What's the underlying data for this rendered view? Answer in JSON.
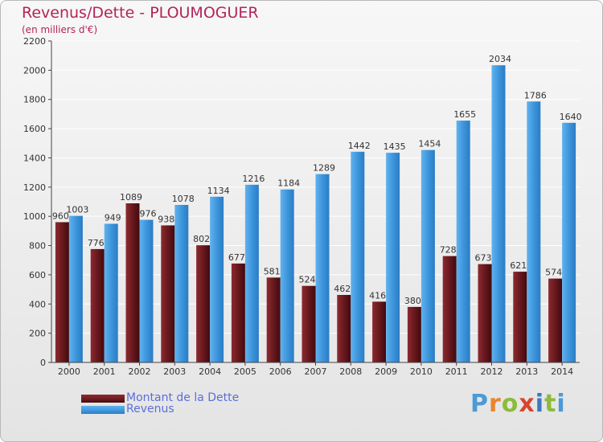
{
  "chart_data": {
    "type": "bar",
    "title": "Revenus/Dette - PLOUMOGUER",
    "subtitle": "(en milliers d'€)",
    "categories": [
      "2000",
      "2001",
      "2002",
      "2003",
      "2004",
      "2005",
      "2006",
      "2007",
      "2008",
      "2009",
      "2010",
      "2011",
      "2012",
      "2013",
      "2014"
    ],
    "series": [
      {
        "name": "Montant de la Dette",
        "color": "#6b1a1f",
        "values": [
          960,
          776,
          1089,
          938,
          802,
          677,
          581,
          524,
          462,
          416,
          380,
          728,
          673,
          621,
          574
        ]
      },
      {
        "name": "Revenus",
        "color": "#3d96dc",
        "values": [
          1003,
          949,
          976,
          1078,
          1134,
          1216,
          1184,
          1289,
          1442,
          1435,
          1454,
          1655,
          2034,
          1786,
          1640
        ]
      }
    ],
    "ylim": [
      0,
      2200
    ],
    "yticks": [
      0,
      200,
      400,
      600,
      800,
      1000,
      1200,
      1400,
      1600,
      1800,
      2000,
      2200
    ],
    "grid": true,
    "legend_position": "bottom-left"
  },
  "logo": {
    "text": "Proxiti",
    "letters": [
      "P",
      "r",
      "o",
      "x",
      "i",
      "t",
      "i"
    ],
    "colors": [
      "#4c9ad7",
      "#e9862d",
      "#8dbb3a",
      "#d8452e",
      "#3a78c2",
      "#8dbb3a",
      "#4c9ad7"
    ]
  }
}
